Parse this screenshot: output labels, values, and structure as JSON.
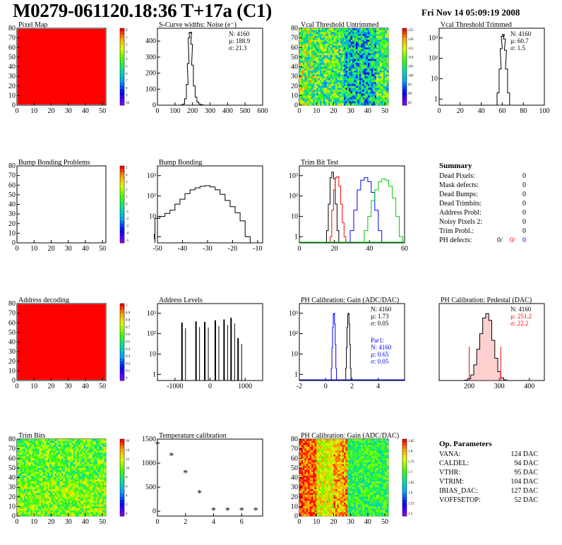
{
  "header": {
    "title": "M0279-061120.18:36 T+17a (C1)",
    "date": "Fri Nov 14 05:09:19 2008"
  },
  "colors": {
    "red": "#ff0000",
    "blue": "#0000ff",
    "green": "#00cc00",
    "black": "#000000"
  },
  "panels": [
    {
      "id": "pixel-map",
      "title": "Pixel Map",
      "type": "heatmap",
      "style": "uniform-red",
      "xticks": [
        0,
        10,
        20,
        30,
        40,
        50
      ],
      "yticks": [
        0,
        10,
        20,
        30,
        40,
        50,
        60,
        70,
        80
      ],
      "xlim": [
        0,
        52
      ],
      "ylim": [
        0,
        80
      ],
      "palette_labels": [
        "0",
        "1",
        "2",
        "3",
        "4",
        "5",
        "6",
        "7",
        "8",
        "9",
        "10"
      ]
    },
    {
      "id": "s-curve",
      "title": "S-Curve widths: Noise (e⁻)",
      "type": "histogram",
      "xticks": [
        0,
        100,
        200,
        300,
        400,
        500,
        600
      ],
      "yticks": [
        0,
        100,
        200,
        300,
        400
      ],
      "xlim": [
        0,
        600
      ],
      "ylim": [
        0,
        480
      ],
      "stats": [
        "N: 4160",
        "µ: 188.9",
        "σ: 21.3"
      ]
    },
    {
      "id": "vcal-untrimmed",
      "title": "Vcal Threshold Untrimmed",
      "type": "heatmap",
      "style": "noise-untrimmed",
      "xticks": [
        0,
        10,
        20,
        30,
        40,
        50
      ],
      "yticks": [
        0,
        10,
        20,
        30,
        40,
        50,
        60,
        70,
        80
      ],
      "xlim": [
        0,
        52
      ],
      "ylim": [
        0,
        80
      ],
      "palette_labels": [
        "125",
        "120",
        "115",
        "110",
        "105",
        "100",
        "95",
        "90",
        "85"
      ]
    },
    {
      "id": "vcal-trimmed",
      "title": "Vcal Threshold Trimmed",
      "type": "histogram",
      "log": true,
      "xticks": [
        0,
        20,
        40,
        60,
        80,
        100
      ],
      "yticks": [
        "1",
        "10",
        "10²",
        "10³"
      ],
      "xlim": [
        0,
        100
      ],
      "stats": [
        "N: 4160",
        "µ: 60.7",
        "σ:  1.5"
      ]
    },
    {
      "id": "bump-problems",
      "title": "Bump Bonding Problems",
      "type": "heatmap",
      "style": "empty",
      "xticks": [
        0,
        10,
        20,
        30,
        40,
        50
      ],
      "yticks": [
        0,
        10,
        20,
        30,
        40,
        50,
        60,
        70,
        80
      ],
      "xlim": [
        0,
        52
      ],
      "ylim": [
        0,
        80
      ],
      "palette_labels": [
        "5",
        "4",
        "3",
        "2",
        "1",
        "0",
        "-1",
        "-2",
        "-3",
        "-4",
        "-5"
      ]
    },
    {
      "id": "bump-bonding",
      "title": "Bump Bonding",
      "type": "histogram",
      "log": true,
      "xticks": [
        -50,
        -40,
        -30,
        -20,
        -10
      ],
      "yticks": [
        "1",
        "10",
        "10²",
        "10³"
      ],
      "xlim": [
        -50,
        -8
      ]
    },
    {
      "id": "trim-bit-test",
      "title": "Trim Bit Test",
      "type": "histogram",
      "log": true,
      "xticks": [
        0,
        20,
        40,
        60
      ],
      "yticks": [
        "1",
        "10",
        "10²",
        "10³"
      ],
      "xlim": [
        0,
        60
      ]
    },
    {
      "id": "address-decoding",
      "title": "Address decoding",
      "type": "heatmap",
      "style": "uniform-red",
      "xticks": [
        0,
        10,
        20,
        30,
        40,
        50
      ],
      "yticks": [
        0,
        10,
        20,
        30,
        40,
        50,
        60,
        70,
        80
      ],
      "xlim": [
        0,
        52
      ],
      "ylim": [
        0,
        80
      ],
      "palette_labels": [
        "1",
        "0.9",
        "0.8",
        "0.7",
        "0.6",
        "0.5",
        "0.4",
        "0.3",
        "0.2",
        "0.1",
        "0"
      ]
    },
    {
      "id": "address-levels",
      "title": "Address Levels",
      "type": "histogram",
      "log": true,
      "xticks": [
        -1000,
        0,
        1000
      ],
      "yticks": [
        "1",
        "10",
        "10²",
        "10³"
      ],
      "xlim": [
        -1500,
        1500
      ]
    },
    {
      "id": "ph-gain",
      "title": "PH Calibration: Gain (ADC/DAC)",
      "type": "histogram",
      "log": true,
      "xticks": [
        -2,
        0,
        2,
        4
      ],
      "yticks": [
        "1",
        "10",
        "10²",
        "10³"
      ],
      "xlim": [
        -2,
        6
      ],
      "stats": [
        "N: 4160",
        "µ: 1.73",
        "σ: 0.05"
      ],
      "stats2": [
        "Par1:",
        "N: 4160",
        "µ: 0.65",
        "σ: 0.05"
      ]
    },
    {
      "id": "ph-pedestal",
      "title": "PH Calibration: Pedestal (DAC)",
      "type": "histogram",
      "xticks": [
        200,
        300,
        400
      ],
      "xlim": [
        100,
        450
      ],
      "stats": [
        "N: 4160",
        "µ: 251.2",
        "σ: 22.2"
      ]
    },
    {
      "id": "trim-bits",
      "title": "Trim Bits",
      "type": "heatmap",
      "style": "noise-trim",
      "xticks": [
        0,
        10,
        20,
        30,
        40,
        50
      ],
      "yticks": [
        0,
        10,
        20,
        30,
        40,
        50,
        60,
        70,
        80
      ],
      "xlim": [
        0,
        52
      ],
      "ylim": [
        0,
        80
      ],
      "palette_labels": [
        "16",
        "14",
        "12",
        "10",
        "8",
        "6",
        "4",
        "2",
        "0"
      ]
    },
    {
      "id": "temperature",
      "title": "Temperature calibration",
      "type": "scatter",
      "xticks": [
        0,
        2,
        4,
        6
      ],
      "yticks": [
        0,
        500,
        1000,
        1500
      ],
      "xlim": [
        0,
        7.5
      ],
      "ylim": [
        -100,
        1500
      ]
    },
    {
      "id": "ph-gain-map",
      "title": "PH Calibration: Gain (ADC/DAC)",
      "type": "heatmap",
      "style": "noise-gain",
      "xticks": [
        0,
        10,
        20,
        30,
        40,
        50
      ],
      "yticks": [
        0,
        10,
        20,
        30,
        40,
        50,
        60,
        70,
        80
      ],
      "xlim": [
        0,
        52
      ],
      "ylim": [
        0,
        80
      ],
      "palette_labels": [
        "1.85",
        "1.8",
        "1.75",
        "1.7",
        "1.65",
        "1.6",
        "1.55",
        "1.5"
      ]
    }
  ],
  "chart_data": [
    {
      "type": "histogram",
      "id": "s-curve",
      "x": [
        140,
        150,
        160,
        170,
        175,
        180,
        185,
        190,
        195,
        200,
        210,
        220,
        230,
        240,
        250,
        260
      ],
      "values": [
        2,
        8,
        40,
        130,
        260,
        420,
        450,
        455,
        380,
        250,
        120,
        50,
        20,
        8,
        3,
        1
      ]
    },
    {
      "type": "histogram",
      "id": "vcal-trimmed",
      "log": true,
      "x": [
        56,
        58,
        59,
        60,
        61,
        62,
        63,
        64,
        66
      ],
      "values": [
        2,
        30,
        300,
        1200,
        1500,
        900,
        250,
        30,
        2
      ]
    },
    {
      "type": "histogram",
      "id": "bump-bonding",
      "log": true,
      "x": [
        -50,
        -48,
        -46,
        -44,
        -42,
        -40,
        -38,
        -36,
        -34,
        -32,
        -30,
        -28,
        -26,
        -24,
        -22,
        -20,
        -18,
        -16,
        -14
      ],
      "values": [
        8,
        10,
        14,
        20,
        40,
        70,
        130,
        200,
        250,
        300,
        320,
        280,
        200,
        120,
        60,
        30,
        15,
        6,
        1
      ]
    },
    {
      "type": "histogram",
      "id": "trim-bit-test",
      "log": true,
      "series": [
        {
          "name": "black",
          "x": [
            16,
            17,
            18,
            19,
            20,
            21,
            22
          ],
          "values": [
            2,
            40,
            800,
            1500,
            700,
            40,
            2
          ]
        },
        {
          "name": "red",
          "x": [
            18,
            19,
            20,
            21,
            22,
            23,
            24,
            25,
            26
          ],
          "values": [
            1,
            20,
            200,
            800,
            900,
            300,
            40,
            5,
            1
          ]
        },
        {
          "name": "blue",
          "x": [
            30,
            32,
            34,
            36,
            38,
            40,
            42,
            44,
            46
          ],
          "values": [
            2,
            20,
            200,
            600,
            800,
            500,
            150,
            20,
            2
          ]
        },
        {
          "name": "green",
          "x": [
            38,
            40,
            42,
            44,
            46,
            48,
            50,
            52,
            54,
            56,
            58
          ],
          "values": [
            2,
            10,
            60,
            200,
            500,
            700,
            600,
            300,
            80,
            10,
            1
          ]
        }
      ]
    },
    {
      "type": "histogram",
      "id": "address-levels",
      "log": true,
      "x": [
        -800,
        -400,
        -150,
        150,
        400,
        600,
        800
      ],
      "values": [
        350,
        400,
        380,
        450,
        500,
        600,
        60
      ]
    },
    {
      "type": "histogram",
      "id": "ph-gain",
      "log": true,
      "series": [
        {
          "name": "black",
          "x": [
            1.55,
            1.6,
            1.65,
            1.7,
            1.75,
            1.8,
            1.85,
            1.9
          ],
          "values": [
            2,
            20,
            200,
            900,
            1000,
            300,
            30,
            2
          ]
        },
        {
          "name": "blue",
          "x": [
            0.45,
            0.5,
            0.55,
            0.6,
            0.65,
            0.7,
            0.75,
            0.8
          ],
          "values": [
            2,
            20,
            200,
            900,
            1000,
            300,
            30,
            2
          ]
        }
      ]
    },
    {
      "type": "histogram",
      "id": "ph-pedestal",
      "x": [
        190,
        200,
        210,
        220,
        230,
        240,
        250,
        260,
        270,
        280,
        290,
        300,
        310,
        320
      ],
      "values": [
        2,
        8,
        25,
        70,
        140,
        210,
        280,
        300,
        270,
        180,
        100,
        40,
        12,
        3
      ]
    },
    {
      "type": "scatter",
      "id": "temperature",
      "x": [
        0,
        1,
        2,
        3,
        4,
        5,
        6,
        7
      ],
      "values": [
        1380,
        1150,
        790,
        370,
        10,
        10,
        10,
        10
      ]
    }
  ],
  "summary": {
    "heading": "Summary",
    "rows": [
      {
        "label": "Dead Pixels:",
        "value": "0"
      },
      {
        "label": "Mask defects:",
        "value": "0"
      },
      {
        "label": "Dead Bumps:",
        "value": "0"
      },
      {
        "label": "Dead Trimbits:",
        "value": "0"
      },
      {
        "label": "Address Probl:",
        "value": "0"
      },
      {
        "label": "Noisy Pixels 2:",
        "value": "0"
      },
      {
        "label": "Trim Probl.:",
        "value": "0"
      }
    ],
    "ph_defects": {
      "label": "PH defects:",
      "v1": "0/",
      "v2": "0/",
      "v3": "0"
    }
  },
  "op_params": {
    "heading": "Op. Parameters",
    "rows": [
      {
        "label": "VANA:",
        "value": "124 DAC"
      },
      {
        "label": "CALDEL:",
        "value": "94 DAC"
      },
      {
        "label": "VTHR:",
        "value": "95 DAC"
      },
      {
        "label": "VTRIM:",
        "value": "104 DAC"
      },
      {
        "label": "IBIAS_DAC:",
        "value": "127 DAC"
      },
      {
        "label": "VOFFSETOP:",
        "value": "52 DAC"
      }
    ]
  }
}
